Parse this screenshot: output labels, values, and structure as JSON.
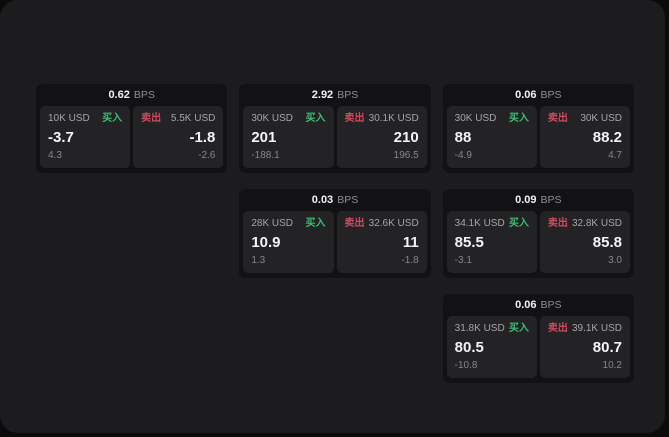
{
  "labels": {
    "buy": "买入",
    "sell": "卖出",
    "bps_unit": "BPS"
  },
  "colors": {
    "buy_green": "#3dbd72",
    "sell_red": "#cf4a5c",
    "panel_bg": "#1c1c1e",
    "card_bg": "#121214",
    "tile_bg": "#232326"
  },
  "cards": [
    {
      "bps": "0.62",
      "buy": {
        "size": "10K USD",
        "value": "-3.7",
        "sub": "4.3"
      },
      "sell": {
        "size": "5.5K USD",
        "value": "-1.8",
        "sub": "-2.6"
      }
    },
    {
      "bps": "2.92",
      "buy": {
        "size": "30K USD",
        "value": "201",
        "sub": "-188.1"
      },
      "sell": {
        "size": "30.1K USD",
        "value": "210",
        "sub": "196.5"
      }
    },
    {
      "bps": "0.06",
      "buy": {
        "size": "30K USD",
        "value": "88",
        "sub": "-4.9"
      },
      "sell": {
        "size": "30K USD",
        "value": "88.2",
        "sub": "4.7"
      }
    },
    {
      "bps": "0.03",
      "buy": {
        "size": "28K USD",
        "value": "10.9",
        "sub": "1.3"
      },
      "sell": {
        "size": "32.6K USD",
        "value": "11",
        "sub": "-1.8"
      }
    },
    {
      "bps": "0.09",
      "buy": {
        "size": "34.1K USD",
        "value": "85.5",
        "sub": "-3.1"
      },
      "sell": {
        "size": "32.8K USD",
        "value": "85.8",
        "sub": "3.0"
      }
    },
    {
      "bps": "0.06",
      "buy": {
        "size": "31.8K USD",
        "value": "80.5",
        "sub": "-10.8"
      },
      "sell": {
        "size": "39.1K USD",
        "value": "80.7",
        "sub": "10.2"
      }
    }
  ]
}
